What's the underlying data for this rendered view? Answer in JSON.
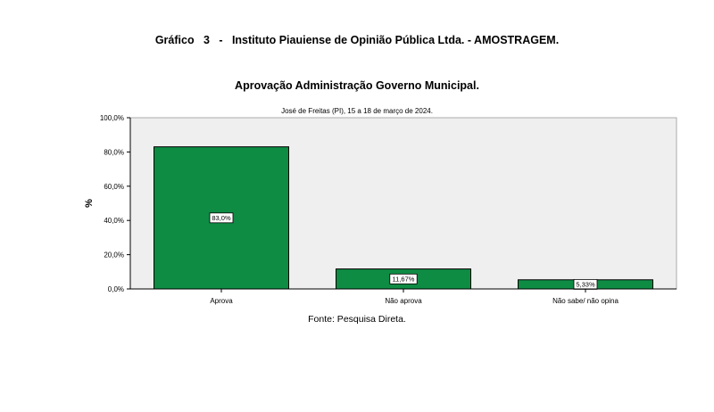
{
  "header": {
    "title": "Gráfico   3   -   Instituto Piauiense de Opinião Pública Ltda. - AMOSTRAGEM."
  },
  "chart_data": {
    "type": "bar",
    "title": "Aprovação Administração Governo Municipal.",
    "subtitle": "José de Freitas (PI), 15 a 18 de março de 2024.",
    "ylabel": "%",
    "xlabel": "",
    "categories": [
      "Aprova",
      "Não aprova",
      "Não sabe/ não opina"
    ],
    "values": [
      83.0,
      11.67,
      5.33
    ],
    "data_labels": [
      "83,0%",
      "11,67%",
      "5,33%"
    ],
    "ylim": [
      0,
      100
    ],
    "yticks": [
      0,
      20,
      40,
      60,
      80,
      100
    ],
    "ytick_labels": [
      "0,0%",
      "20,0%",
      "40,0%",
      "60,0%",
      "80,0%",
      "100,0%"
    ],
    "grid": false,
    "legend": "none",
    "colors": {
      "bar": "#0e8c44",
      "plot_background": "#efefef",
      "axis": "#000000"
    }
  },
  "footer": {
    "source": "Fonte: Pesquisa Direta."
  }
}
